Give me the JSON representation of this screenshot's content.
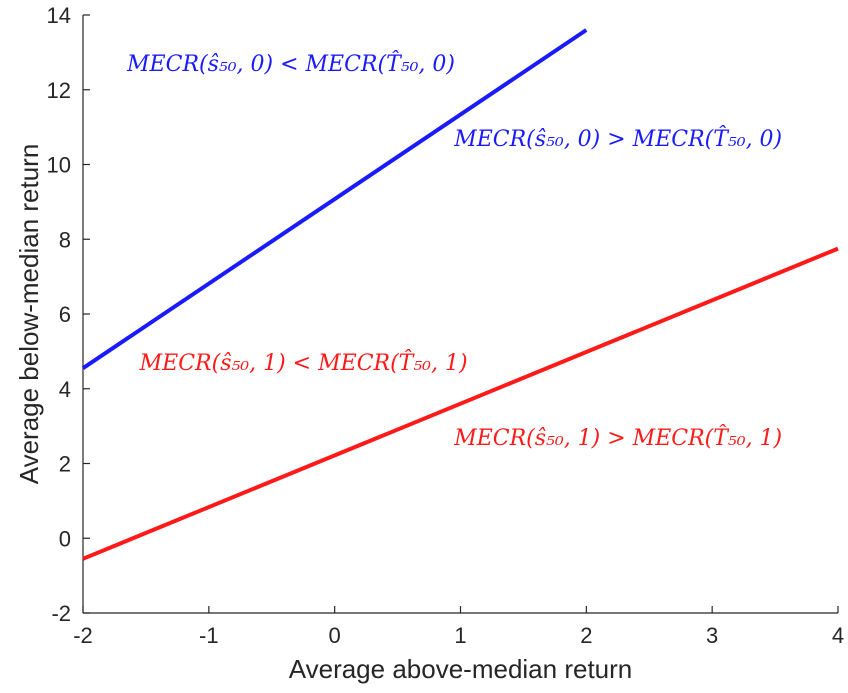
{
  "chart_data": {
    "type": "line",
    "title": "",
    "xlabel": "Average above-median return",
    "ylabel": "Average below-median return",
    "xlim": [
      -2,
      4
    ],
    "ylim": [
      -2,
      14
    ],
    "x_ticks": [
      -2,
      -1,
      0,
      1,
      2,
      3,
      4
    ],
    "y_ticks": [
      -2,
      0,
      2,
      4,
      6,
      8,
      10,
      12,
      14
    ],
    "grid": false,
    "legend": "none",
    "series": [
      {
        "color": "#1a1aff",
        "x": [
          -2,
          2
        ],
        "y": [
          4.55,
          13.6
        ]
      },
      {
        "color": "#ff1a1a",
        "x": [
          -2,
          4
        ],
        "y": [
          -0.55,
          7.75
        ]
      }
    ],
    "annotations": [
      {
        "text": "MECR(ŝ₅₀, 0) < MECR(T̂₅₀, 0)",
        "color": "#1a1aff",
        "x": -1.65,
        "y": 12.5
      },
      {
        "text": "MECR(ŝ₅₀, 0) > MECR(T̂₅₀, 0)",
        "color": "#1a1aff",
        "x": 0.95,
        "y": 10.5
      },
      {
        "text": "MECR(ŝ₅₀, 1) < MECR(T̂₅₀, 1)",
        "color": "#ff1a1a",
        "x": -1.55,
        "y": 4.5
      },
      {
        "text": "MECR(ŝ₅₀, 1) > MECR(T̂₅₀, 1)",
        "color": "#ff1a1a",
        "x": 0.95,
        "y": 2.5
      }
    ]
  }
}
